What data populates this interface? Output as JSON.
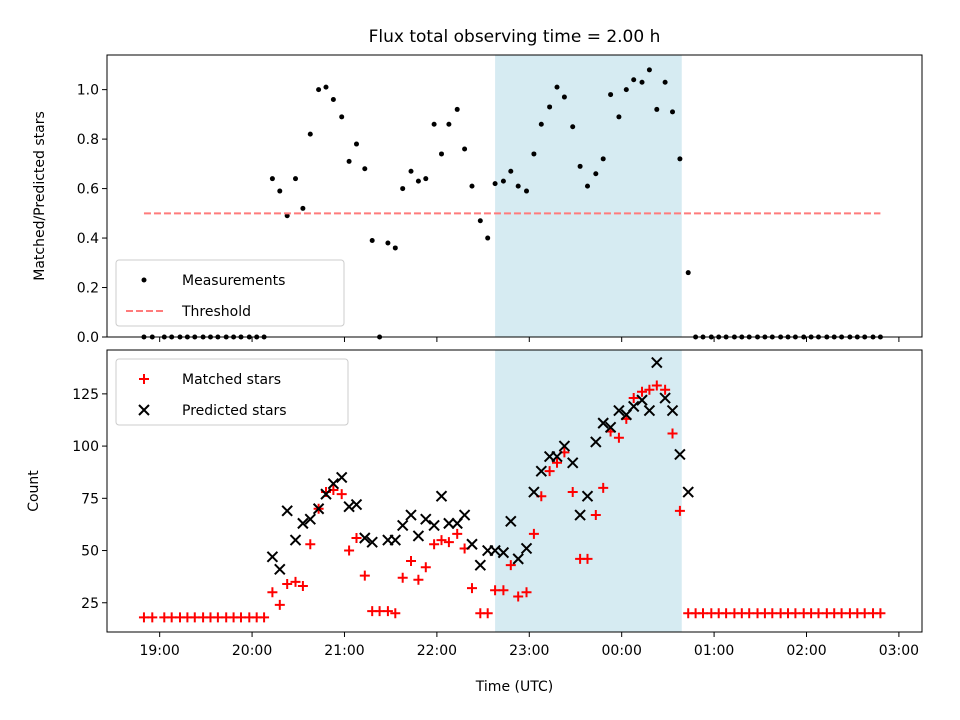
{
  "chart_data": [
    {
      "type": "scatter",
      "title": "Flux total observing time = 2.00 h",
      "xlabel": "",
      "ylabel": "Matched/Predicted stars",
      "xlim_hours": [
        18.43,
        27.25
      ],
      "ylim": [
        0,
        1.14
      ],
      "yticks": [
        0.0,
        0.2,
        0.4,
        0.6,
        0.8,
        1.0
      ],
      "ytick_labels": [
        "0.0",
        "0.2",
        "0.4",
        "0.6",
        "0.8",
        "1.0"
      ],
      "xticks_hours": [
        19,
        20,
        21,
        22,
        23,
        24,
        25,
        26,
        27
      ],
      "shaded_span_hours": [
        22.63,
        24.65
      ],
      "shade_color": "#add8e6",
      "legend_position": "lower-left",
      "series": [
        {
          "name": "Measurements",
          "marker": "dot",
          "color": "#000000",
          "points": [
            [
              18.83,
              0
            ],
            [
              18.92,
              0
            ],
            [
              19.05,
              0
            ],
            [
              19.13,
              0
            ],
            [
              19.22,
              0
            ],
            [
              19.3,
              0
            ],
            [
              19.38,
              0
            ],
            [
              19.47,
              0
            ],
            [
              19.55,
              0
            ],
            [
              19.63,
              0
            ],
            [
              19.72,
              0
            ],
            [
              19.8,
              0
            ],
            [
              19.88,
              0
            ],
            [
              19.97,
              0
            ],
            [
              20.05,
              0
            ],
            [
              20.13,
              0
            ],
            [
              20.22,
              0.64
            ],
            [
              20.3,
              0.59
            ],
            [
              20.38,
              0.49
            ],
            [
              20.47,
              0.64
            ],
            [
              20.55,
              0.52
            ],
            [
              20.63,
              0.82
            ],
            [
              20.72,
              1.0
            ],
            [
              20.8,
              1.01
            ],
            [
              20.88,
              0.96
            ],
            [
              20.97,
              0.89
            ],
            [
              21.05,
              0.71
            ],
            [
              21.13,
              0.78
            ],
            [
              21.22,
              0.68
            ],
            [
              21.3,
              0.39
            ],
            [
              21.38,
              0.0
            ],
            [
              21.47,
              0.38
            ],
            [
              21.55,
              0.36
            ],
            [
              21.63,
              0.6
            ],
            [
              21.72,
              0.67
            ],
            [
              21.8,
              0.63
            ],
            [
              21.88,
              0.64
            ],
            [
              21.97,
              0.86
            ],
            [
              22.05,
              0.74
            ],
            [
              22.13,
              0.86
            ],
            [
              22.22,
              0.92
            ],
            [
              22.3,
              0.76
            ],
            [
              22.38,
              0.61
            ],
            [
              22.47,
              0.47
            ],
            [
              22.55,
              0.4
            ],
            [
              22.63,
              0.62
            ],
            [
              22.72,
              0.63
            ],
            [
              22.8,
              0.67
            ],
            [
              22.88,
              0.61
            ],
            [
              22.97,
              0.59
            ],
            [
              23.05,
              0.74
            ],
            [
              23.13,
              0.86
            ],
            [
              23.22,
              0.93
            ],
            [
              23.3,
              1.01
            ],
            [
              23.38,
              0.97
            ],
            [
              23.47,
              0.85
            ],
            [
              23.55,
              0.69
            ],
            [
              23.63,
              0.61
            ],
            [
              23.72,
              0.66
            ],
            [
              23.8,
              0.72
            ],
            [
              23.88,
              0.98
            ],
            [
              23.97,
              0.89
            ],
            [
              24.05,
              1.0
            ],
            [
              24.13,
              1.04
            ],
            [
              24.22,
              1.03
            ],
            [
              24.3,
              1.08
            ],
            [
              24.38,
              0.92
            ],
            [
              24.47,
              1.03
            ],
            [
              24.55,
              0.91
            ],
            [
              24.63,
              0.72
            ],
            [
              24.72,
              0.26
            ],
            [
              24.8,
              0
            ],
            [
              24.88,
              0
            ],
            [
              24.97,
              0
            ],
            [
              25.05,
              0
            ],
            [
              25.13,
              0
            ],
            [
              25.22,
              0
            ],
            [
              25.3,
              0
            ],
            [
              25.38,
              0
            ],
            [
              25.47,
              0
            ],
            [
              25.55,
              0
            ],
            [
              25.63,
              0
            ],
            [
              25.72,
              0
            ],
            [
              25.8,
              0
            ],
            [
              25.88,
              0
            ],
            [
              25.97,
              0
            ],
            [
              26.05,
              0
            ],
            [
              26.13,
              0
            ],
            [
              26.22,
              0
            ],
            [
              26.3,
              0
            ],
            [
              26.38,
              0
            ],
            [
              26.47,
              0
            ],
            [
              26.55,
              0
            ],
            [
              26.63,
              0
            ],
            [
              26.72,
              0
            ],
            [
              26.8,
              0
            ]
          ]
        },
        {
          "name": "Threshold",
          "marker": "dashed-line",
          "color": "#ff7b7b",
          "points": [
            [
              18.83,
              0.5
            ],
            [
              26.8,
              0.5
            ]
          ]
        }
      ]
    },
    {
      "type": "scatter",
      "title": "",
      "xlabel": "Time (UTC)",
      "ylabel": "Count",
      "xlim_hours": [
        18.43,
        27.25
      ],
      "ylim": [
        11,
        146
      ],
      "yticks": [
        25,
        50,
        75,
        100,
        125
      ],
      "ytick_labels": [
        "25",
        "50",
        "75",
        "100",
        "125"
      ],
      "xticks_hours": [
        19,
        20,
        21,
        22,
        23,
        24,
        25,
        26,
        27
      ],
      "xtick_labels": [
        "19:00",
        "20:00",
        "21:00",
        "22:00",
        "23:00",
        "00:00",
        "01:00",
        "02:00",
        "03:00"
      ],
      "shaded_span_hours": [
        22.63,
        24.65
      ],
      "shade_color": "#add8e6",
      "legend_position": "top-left",
      "series": [
        {
          "name": "Matched stars",
          "marker": "plus",
          "color": "#ff0000",
          "points": [
            [
              18.83,
              18
            ],
            [
              18.92,
              18
            ],
            [
              19.05,
              18
            ],
            [
              19.13,
              18
            ],
            [
              19.22,
              18
            ],
            [
              19.3,
              18
            ],
            [
              19.38,
              18
            ],
            [
              19.47,
              18
            ],
            [
              19.55,
              18
            ],
            [
              19.63,
              18
            ],
            [
              19.72,
              18
            ],
            [
              19.8,
              18
            ],
            [
              19.88,
              18
            ],
            [
              19.97,
              18
            ],
            [
              20.05,
              18
            ],
            [
              20.13,
              18
            ],
            [
              20.22,
              30
            ],
            [
              20.3,
              24
            ],
            [
              20.38,
              34
            ],
            [
              20.47,
              35
            ],
            [
              20.55,
              33
            ],
            [
              20.63,
              53
            ],
            [
              20.72,
              70
            ],
            [
              20.8,
              78
            ],
            [
              20.88,
              79
            ],
            [
              20.97,
              77
            ],
            [
              21.05,
              50
            ],
            [
              21.13,
              56
            ],
            [
              21.22,
              38
            ],
            [
              21.3,
              21
            ],
            [
              21.38,
              21
            ],
            [
              21.47,
              21
            ],
            [
              21.55,
              20
            ],
            [
              21.63,
              37
            ],
            [
              21.72,
              45
            ],
            [
              21.8,
              36
            ],
            [
              21.88,
              42
            ],
            [
              21.97,
              53
            ],
            [
              22.05,
              55
            ],
            [
              22.13,
              54
            ],
            [
              22.22,
              58
            ],
            [
              22.3,
              51
            ],
            [
              22.38,
              32
            ],
            [
              22.47,
              20
            ],
            [
              22.55,
              20
            ],
            [
              22.63,
              31
            ],
            [
              22.72,
              31
            ],
            [
              22.8,
              43
            ],
            [
              22.88,
              28
            ],
            [
              22.97,
              30
            ],
            [
              23.05,
              58
            ],
            [
              23.13,
              76
            ],
            [
              23.22,
              88
            ],
            [
              23.3,
              92
            ],
            [
              23.38,
              97
            ],
            [
              23.47,
              78
            ],
            [
              23.55,
              46
            ],
            [
              23.63,
              46
            ],
            [
              23.72,
              67
            ],
            [
              23.8,
              80
            ],
            [
              23.88,
              107
            ],
            [
              23.97,
              104
            ],
            [
              24.05,
              113
            ],
            [
              24.13,
              123
            ],
            [
              24.22,
              126
            ],
            [
              24.3,
              127
            ],
            [
              24.38,
              129
            ],
            [
              24.47,
              127
            ],
            [
              24.55,
              106
            ],
            [
              24.63,
              69
            ],
            [
              24.72,
              20
            ],
            [
              24.8,
              20
            ],
            [
              24.88,
              20
            ],
            [
              24.97,
              20
            ],
            [
              25.05,
              20
            ],
            [
              25.13,
              20
            ],
            [
              25.22,
              20
            ],
            [
              25.3,
              20
            ],
            [
              25.38,
              20
            ],
            [
              25.47,
              20
            ],
            [
              25.55,
              20
            ],
            [
              25.63,
              20
            ],
            [
              25.72,
              20
            ],
            [
              25.8,
              20
            ],
            [
              25.88,
              20
            ],
            [
              25.97,
              20
            ],
            [
              26.05,
              20
            ],
            [
              26.13,
              20
            ],
            [
              26.22,
              20
            ],
            [
              26.3,
              20
            ],
            [
              26.38,
              20
            ],
            [
              26.47,
              20
            ],
            [
              26.55,
              20
            ],
            [
              26.63,
              20
            ],
            [
              26.72,
              20
            ],
            [
              26.8,
              20
            ]
          ]
        },
        {
          "name": "Predicted stars",
          "marker": "x",
          "color": "#000000",
          "points": [
            [
              20.22,
              47
            ],
            [
              20.3,
              41
            ],
            [
              20.38,
              69
            ],
            [
              20.47,
              55
            ],
            [
              20.55,
              63
            ],
            [
              20.63,
              65
            ],
            [
              20.72,
              70
            ],
            [
              20.8,
              77
            ],
            [
              20.88,
              82
            ],
            [
              20.97,
              85
            ],
            [
              21.05,
              71
            ],
            [
              21.13,
              72
            ],
            [
              21.22,
              56
            ],
            [
              21.3,
              54
            ],
            [
              21.47,
              55
            ],
            [
              21.55,
              55
            ],
            [
              21.63,
              62
            ],
            [
              21.72,
              67
            ],
            [
              21.8,
              57
            ],
            [
              21.88,
              65
            ],
            [
              21.97,
              62
            ],
            [
              22.05,
              76
            ],
            [
              22.13,
              63
            ],
            [
              22.22,
              63
            ],
            [
              22.3,
              67
            ],
            [
              22.38,
              53
            ],
            [
              22.47,
              43
            ],
            [
              22.55,
              50
            ],
            [
              22.63,
              50
            ],
            [
              22.72,
              49
            ],
            [
              22.8,
              64
            ],
            [
              22.88,
              46
            ],
            [
              22.97,
              51
            ],
            [
              23.05,
              78
            ],
            [
              23.13,
              88
            ],
            [
              23.22,
              95
            ],
            [
              23.3,
              95
            ],
            [
              23.38,
              100
            ],
            [
              23.47,
              92
            ],
            [
              23.55,
              67
            ],
            [
              23.63,
              76
            ],
            [
              23.72,
              102
            ],
            [
              23.8,
              111
            ],
            [
              23.88,
              109
            ],
            [
              23.97,
              117
            ],
            [
              24.05,
              115
            ],
            [
              24.13,
              119
            ],
            [
              24.22,
              122
            ],
            [
              24.3,
              117
            ],
            [
              24.38,
              140
            ],
            [
              24.47,
              123
            ],
            [
              24.55,
              117
            ],
            [
              24.63,
              96
            ],
            [
              24.72,
              78
            ]
          ]
        }
      ]
    }
  ]
}
